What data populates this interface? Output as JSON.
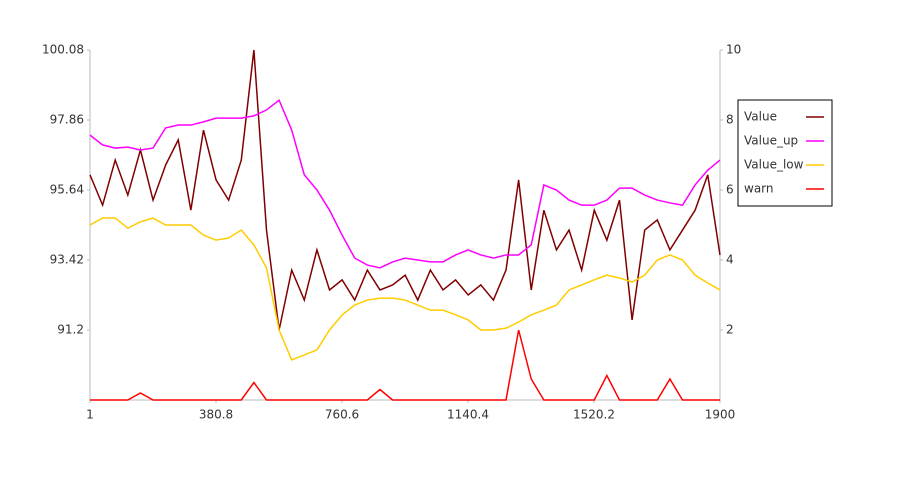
{
  "chart_data": {
    "type": "line",
    "x": [
      1,
      39,
      77,
      115,
      153,
      191,
      229,
      267,
      305,
      343,
      381,
      419,
      457,
      495,
      533,
      571,
      609,
      647,
      685,
      723,
      761,
      799,
      837,
      875,
      913,
      951,
      989,
      1027,
      1065,
      1103,
      1141,
      1179,
      1217,
      1255,
      1293,
      1331,
      1369,
      1407,
      1445,
      1483,
      1521,
      1559,
      1597,
      1635,
      1673,
      1711,
      1749,
      1787,
      1825,
      1863,
      1900
    ],
    "series": [
      {
        "name": "Value",
        "color": "#800000",
        "values": [
          96.12,
          95.16,
          96.59,
          95.48,
          96.91,
          95.32,
          96.43,
          97.23,
          95.0,
          97.54,
          95.96,
          95.32,
          96.59,
          100.08,
          94.37,
          91.2,
          93.1,
          92.15,
          93.74,
          92.47,
          92.79,
          92.15,
          93.1,
          92.47,
          92.63,
          92.94,
          92.15,
          93.1,
          92.47,
          92.79,
          92.31,
          92.63,
          92.15,
          93.1,
          95.96,
          92.47,
          95.0,
          93.74,
          94.37,
          93.1,
          95.0,
          94.05,
          95.32,
          91.52,
          94.37,
          94.69,
          93.74,
          94.37,
          95.0,
          96.12,
          93.58
        ]
      },
      {
        "name": "Value_up",
        "color": "#ff00ff",
        "values": [
          97.38,
          97.07,
          96.97,
          97.0,
          96.91,
          96.97,
          97.61,
          97.7,
          97.7,
          97.8,
          97.92,
          97.92,
          97.92,
          97.99,
          98.18,
          98.49,
          97.54,
          96.12,
          95.64,
          95.0,
          94.21,
          93.48,
          93.26,
          93.17,
          93.36,
          93.48,
          93.42,
          93.36,
          93.36,
          93.58,
          93.74,
          93.58,
          93.48,
          93.58,
          93.58,
          93.9,
          95.8,
          95.64,
          95.32,
          95.16,
          95.16,
          95.32,
          95.7,
          95.7,
          95.48,
          95.32,
          95.23,
          95.16,
          95.8,
          96.27,
          96.59
        ]
      },
      {
        "name": "Value_low",
        "color": "#ffcc00",
        "values": [
          94.53,
          94.75,
          94.75,
          94.43,
          94.63,
          94.75,
          94.53,
          94.53,
          94.53,
          94.21,
          94.05,
          94.12,
          94.37,
          93.9,
          93.17,
          91.2,
          90.25,
          90.41,
          90.57,
          91.2,
          91.68,
          91.99,
          92.15,
          92.21,
          92.21,
          92.15,
          91.99,
          91.83,
          91.83,
          91.68,
          91.52,
          91.2,
          91.2,
          91.26,
          91.45,
          91.68,
          91.83,
          91.99,
          92.47,
          92.63,
          92.79,
          92.94,
          92.85,
          92.72,
          92.94,
          93.42,
          93.58,
          93.42,
          92.94,
          92.69,
          92.47
        ]
      },
      {
        "name": "warn",
        "color": "#ff0000",
        "axis": "y2",
        "values": [
          0,
          0,
          0,
          0,
          0.2,
          0,
          0,
          0,
          0,
          0,
          0,
          0,
          0,
          0.5,
          0,
          0,
          0,
          0,
          0,
          0,
          0,
          0,
          0,
          0.3,
          0,
          0,
          0,
          0,
          0,
          0,
          0,
          0,
          0,
          0,
          2,
          0.6,
          0,
          0,
          0,
          0,
          0,
          0.7,
          0,
          0,
          0,
          0,
          0.6,
          0,
          0,
          0,
          0
        ]
      }
    ],
    "xlim": [
      1,
      1900
    ],
    "xticks": [
      1,
      380.8,
      760.6,
      1140.4,
      1520.2,
      1900
    ],
    "ylim": [
      88.98,
      100.08
    ],
    "yticks": [
      91.2,
      93.42,
      95.64,
      97.86,
      100.08
    ],
    "y2lim": [
      0,
      10
    ],
    "y2ticks": [
      2,
      4,
      6,
      8,
      10
    ],
    "legend": "right"
  }
}
